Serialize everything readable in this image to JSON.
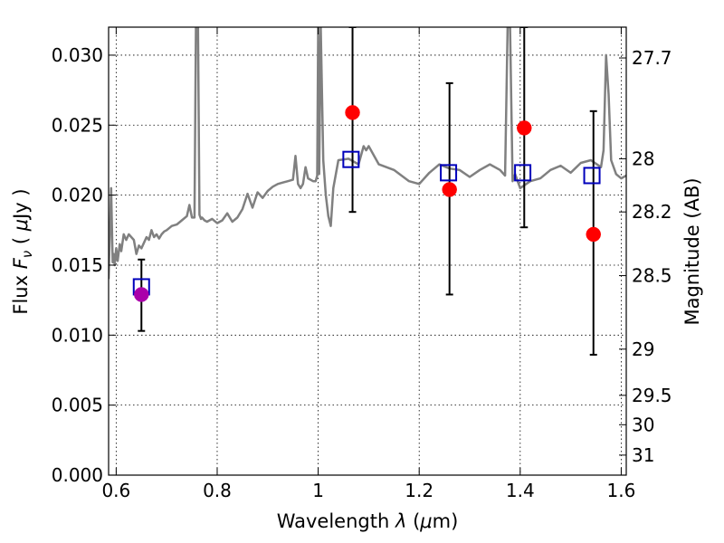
{
  "chart_data": {
    "type": "scatter",
    "title": "",
    "xlabel": "Wavelength  λ (μm)",
    "ylabel": "Flux  F_ν  ( μJy )",
    "ylabel_right": "Magnitude (AB)",
    "xlim": [
      0.585,
      1.61
    ],
    "ylim": [
      0.0,
      0.032
    ],
    "grid": true,
    "x_ticks": [
      {
        "value": 0.6,
        "label": "0.6"
      },
      {
        "value": 0.8,
        "label": "0.8"
      },
      {
        "value": 1.0,
        "label": "1"
      },
      {
        "value": 1.2,
        "label": "1.2"
      },
      {
        "value": 1.4,
        "label": "1.4"
      },
      {
        "value": 1.6,
        "label": "1.6"
      }
    ],
    "y_ticks": [
      {
        "value": 0.0,
        "label": "0.000"
      },
      {
        "value": 0.005,
        "label": "0.005"
      },
      {
        "value": 0.01,
        "label": "0.010"
      },
      {
        "value": 0.015,
        "label": "0.015"
      },
      {
        "value": 0.02,
        "label": "0.020"
      },
      {
        "value": 0.025,
        "label": "0.025"
      },
      {
        "value": 0.03,
        "label": "0.030"
      }
    ],
    "right_ticks": [
      {
        "label": "27.7",
        "flux": 0.0298
      },
      {
        "label": "28",
        "flux": 0.0226
      },
      {
        "label": "28.2",
        "flux": 0.0188
      },
      {
        "label": "28.5",
        "flux": 0.01425
      },
      {
        "label": "29",
        "flux": 0.009
      },
      {
        "label": "29.5",
        "flux": 0.0057
      },
      {
        "label": "30",
        "flux": 0.0036
      },
      {
        "label": "31",
        "flux": 0.00143
      }
    ],
    "model_spectrum": {
      "color": "#808080",
      "x": [
        0.585,
        0.59,
        0.593,
        0.595,
        0.597,
        0.6,
        0.603,
        0.607,
        0.61,
        0.615,
        0.62,
        0.625,
        0.63,
        0.635,
        0.64,
        0.645,
        0.65,
        0.655,
        0.66,
        0.665,
        0.67,
        0.675,
        0.68,
        0.685,
        0.69,
        0.695,
        0.7,
        0.71,
        0.72,
        0.73,
        0.74,
        0.745,
        0.75,
        0.755,
        0.758,
        0.76,
        0.762,
        0.765,
        0.768,
        0.77,
        0.775,
        0.78,
        0.79,
        0.8,
        0.81,
        0.82,
        0.83,
        0.84,
        0.85,
        0.86,
        0.87,
        0.88,
        0.89,
        0.9,
        0.91,
        0.92,
        0.93,
        0.94,
        0.95,
        0.955,
        0.96,
        0.965,
        0.97,
        0.975,
        0.98,
        0.99,
        0.995,
        0.998,
        1.0,
        1.002,
        1.005,
        1.01,
        1.015,
        1.02,
        1.025,
        1.03,
        1.04,
        1.06,
        1.08,
        1.09,
        1.095,
        1.1,
        1.12,
        1.15,
        1.18,
        1.2,
        1.22,
        1.24,
        1.26,
        1.28,
        1.3,
        1.32,
        1.34,
        1.36,
        1.37,
        1.375,
        1.38,
        1.385,
        1.39,
        1.4,
        1.42,
        1.44,
        1.46,
        1.48,
        1.5,
        1.52,
        1.54,
        1.56,
        1.565,
        1.57,
        1.575,
        1.58,
        1.59,
        1.6,
        1.61
      ],
      "y": [
        0.014,
        0.0205,
        0.0152,
        0.0158,
        0.015,
        0.0162,
        0.0153,
        0.0165,
        0.016,
        0.0172,
        0.0168,
        0.0172,
        0.017,
        0.0168,
        0.0158,
        0.0164,
        0.0162,
        0.0166,
        0.017,
        0.0168,
        0.0175,
        0.017,
        0.0172,
        0.0169,
        0.0172,
        0.0174,
        0.0175,
        0.0178,
        0.0179,
        0.0182,
        0.0185,
        0.0193,
        0.0184,
        0.0184,
        0.032,
        0.032,
        0.032,
        0.0186,
        0.0183,
        0.0184,
        0.0182,
        0.0181,
        0.0183,
        0.018,
        0.0182,
        0.0187,
        0.0181,
        0.0184,
        0.019,
        0.0201,
        0.0191,
        0.0202,
        0.0198,
        0.0203,
        0.0206,
        0.0208,
        0.0209,
        0.021,
        0.0211,
        0.0228,
        0.0208,
        0.0205,
        0.0208,
        0.022,
        0.0212,
        0.021,
        0.021,
        0.0214,
        0.032,
        0.0215,
        0.032,
        0.0225,
        0.02,
        0.0185,
        0.0178,
        0.0205,
        0.0225,
        0.0226,
        0.0222,
        0.0235,
        0.0232,
        0.0235,
        0.0222,
        0.0218,
        0.021,
        0.0208,
        0.0216,
        0.0222,
        0.0219,
        0.0218,
        0.0213,
        0.0218,
        0.0222,
        0.0218,
        0.0214,
        0.032,
        0.032,
        0.021,
        0.0215,
        0.0205,
        0.021,
        0.0212,
        0.0218,
        0.0221,
        0.0216,
        0.0223,
        0.0225,
        0.022,
        0.0232,
        0.03,
        0.0272,
        0.0225,
        0.0215,
        0.0212,
        0.0214
      ]
    },
    "series": [
      {
        "name": "",
        "marker": "square",
        "color": "#0000bb",
        "points": [
          {
            "x": 0.65,
            "y": 0.01345
          },
          {
            "x": 1.065,
            "y": 0.02255
          },
          {
            "x": 1.258,
            "y": 0.0216
          },
          {
            "x": 1.405,
            "y": 0.0216
          },
          {
            "x": 1.542,
            "y": 0.0214
          }
        ]
      },
      {
        "name": "",
        "marker": "circle",
        "points": [
          {
            "x": 0.65,
            "y": 0.0129,
            "yerr": [
              0.0103,
              0.0154
            ],
            "color": "#aa00aa"
          },
          {
            "x": 1.068,
            "y": 0.0259,
            "yerr": [
              0.0188,
              0.032
            ],
            "color": "#ff0000"
          },
          {
            "x": 1.26,
            "y": 0.0204,
            "yerr": [
              0.0129,
              0.028
            ],
            "color": "#ff0000"
          },
          {
            "x": 1.408,
            "y": 0.0248,
            "yerr": [
              0.0177,
              0.032
            ],
            "color": "#ff0000"
          },
          {
            "x": 1.545,
            "y": 0.0172,
            "yerr": [
              0.0086,
              0.026
            ],
            "color": "#ff0000"
          }
        ]
      }
    ]
  }
}
